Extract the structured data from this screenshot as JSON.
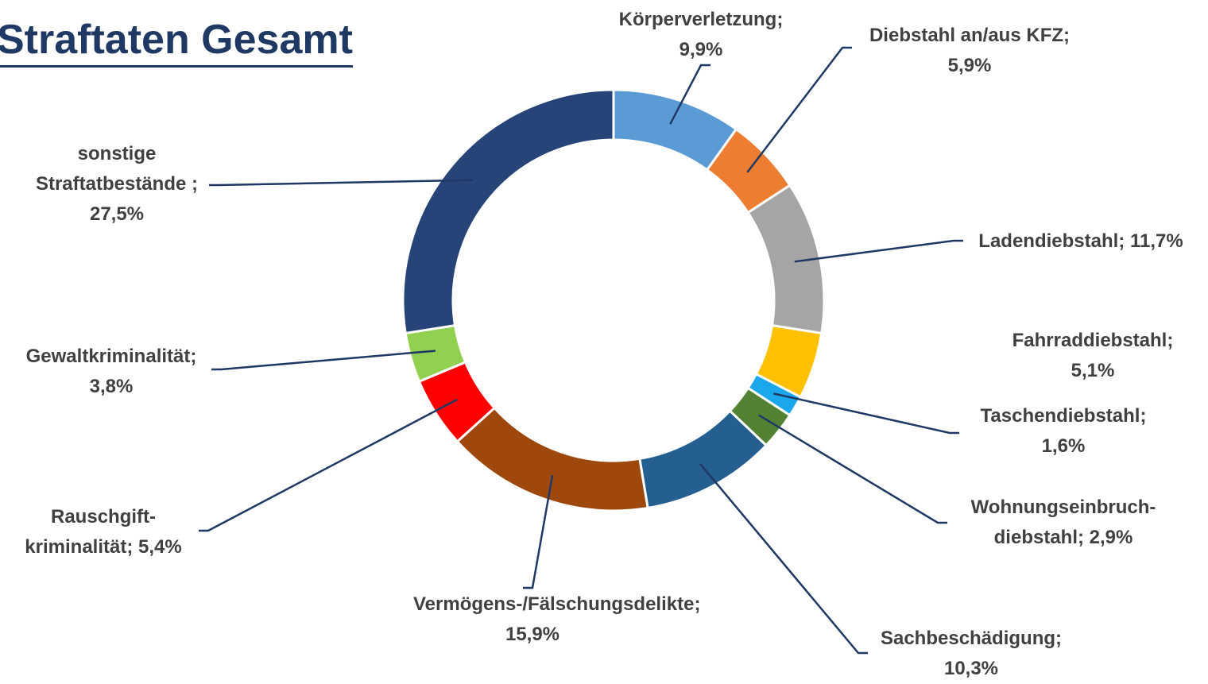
{
  "chart_data": {
    "type": "donut",
    "title": "Straftaten Gesamt",
    "categories": [
      "Körperverletzung;",
      "Diebstahl an/aus  KFZ;",
      "Ladendiebstahl;",
      "Fahrraddiebstahl;",
      "Taschendiebstahl;",
      "Wohnungseinbruch-diebstahl;",
      "Sachbeschädigung;",
      "Vermögens-/Fälschungsdelikte;",
      "Rauschgift-kriminalität;",
      "Gewaltkriminalität;",
      "sonstige Straftatbestände ;"
    ],
    "values": [
      9.9,
      5.9,
      11.7,
      5.1,
      1.6,
      2.9,
      10.3,
      15.9,
      5.4,
      3.8,
      27.5
    ],
    "value_labels": [
      "9,9%",
      "5,9%",
      "11,7%",
      "5,1%",
      "1,6%",
      "2,9%",
      "10,3%",
      "15,9%",
      "5,4%",
      "3,8%",
      "27,5%"
    ],
    "colors": [
      "#5b9bd5",
      "#ed7d31",
      "#a5a5a5",
      "#ffc000",
      "#1aa7ec",
      "#548235",
      "#255e91",
      "#9e480e",
      "#ff0000",
      "#92d050",
      "#264478"
    ]
  }
}
